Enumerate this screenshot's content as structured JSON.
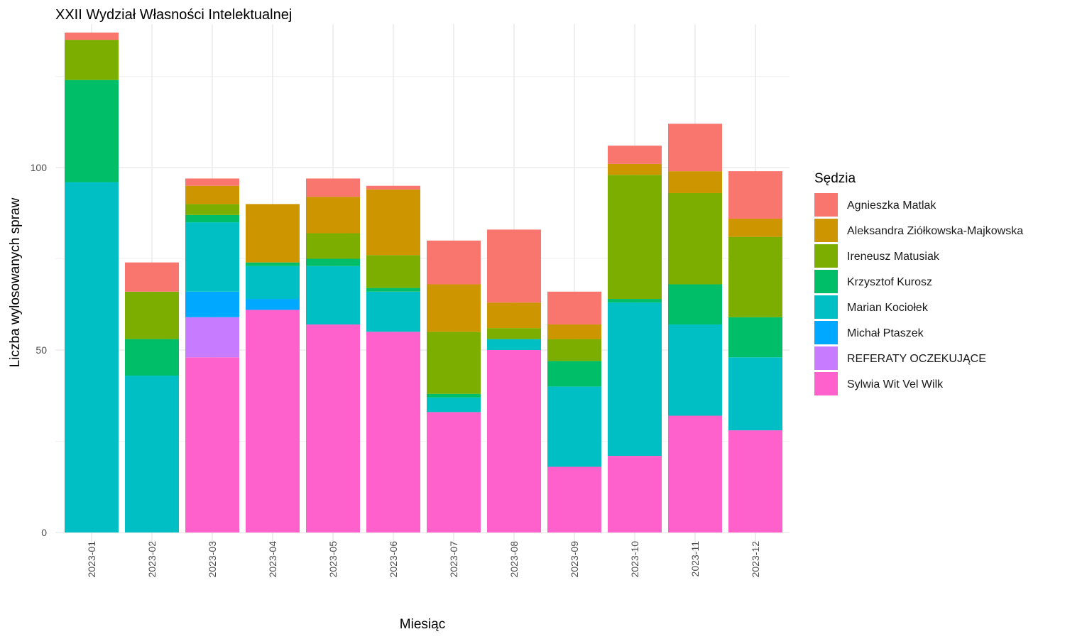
{
  "chart_data": {
    "type": "bar",
    "stacked": true,
    "title": "XXII Wydział Własności Intelektualnej",
    "xlabel": "Miesiąc",
    "ylabel": "Liczba wylosowanych spraw",
    "ylim": [
      0,
      139
    ],
    "yticks": [
      0,
      50,
      100
    ],
    "grid": true,
    "legend": {
      "title": "Sędzia",
      "position": "right"
    },
    "categories": [
      "2023-01",
      "2023-02",
      "2023-03",
      "2023-04",
      "2023-05",
      "2023-06",
      "2023-07",
      "2023-08",
      "2023-09",
      "2023-10",
      "2023-11",
      "2023-12"
    ],
    "series": [
      {
        "name": "Agnieszka Matlak",
        "color": "#F8766D",
        "values": [
          2,
          8,
          2,
          0,
          5,
          1,
          12,
          20,
          9,
          5,
          13,
          13
        ]
      },
      {
        "name": "Aleksandra Ziółkowska-Majkowska",
        "color": "#CD9600",
        "values": [
          0,
          0,
          5,
          16,
          10,
          18,
          13,
          7,
          4,
          3,
          6,
          5
        ]
      },
      {
        "name": "Ireneusz Matusiak",
        "color": "#7CAE00",
        "values": [
          11,
          13,
          3,
          0,
          7,
          9,
          17,
          3,
          6,
          34,
          25,
          22
        ]
      },
      {
        "name": "Krzysztof Kurosz",
        "color": "#00BE67",
        "values": [
          28,
          10,
          2,
          1,
          2,
          1,
          1,
          0,
          7,
          1,
          11,
          11
        ]
      },
      {
        "name": "Marian Kociołek",
        "color": "#00BFC4",
        "values": [
          96,
          43,
          19,
          9,
          16,
          11,
          4,
          3,
          22,
          42,
          25,
          20
        ]
      },
      {
        "name": "Michał Ptaszek",
        "color": "#00A9FF",
        "values": [
          0,
          0,
          7,
          3,
          0,
          0,
          0,
          0,
          0,
          0,
          0,
          0
        ]
      },
      {
        "name": "REFERATY OCZEKUJĄCE",
        "color": "#C77CFF",
        "values": [
          0,
          0,
          11,
          0,
          0,
          0,
          0,
          0,
          0,
          0,
          0,
          0
        ]
      },
      {
        "name": "Sylwia Wit Vel Wilk",
        "color": "#FF61CC",
        "values": [
          0,
          0,
          48,
          61,
          57,
          55,
          33,
          50,
          18,
          21,
          32,
          28
        ]
      }
    ]
  }
}
